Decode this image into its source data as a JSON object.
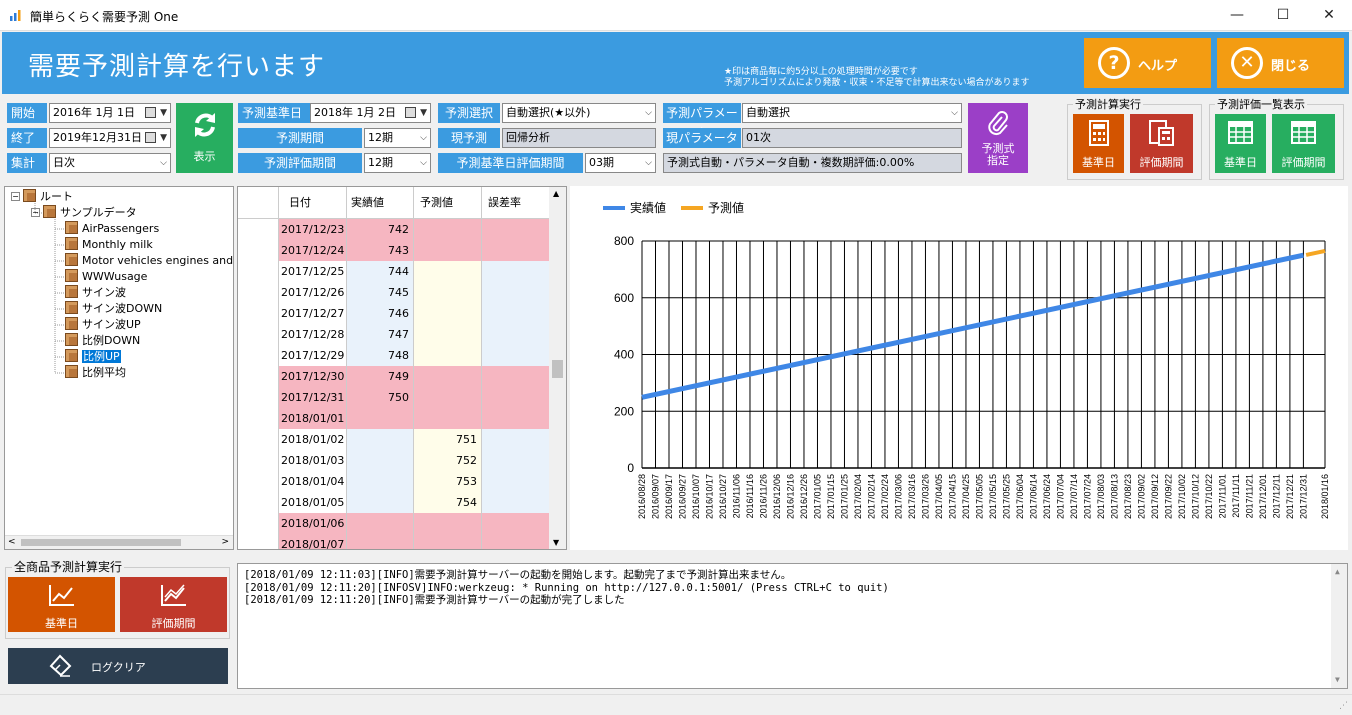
{
  "window": {
    "title": "簡単らくらく需要予測 One",
    "min": "—",
    "max": "☐",
    "close": "✕"
  },
  "header": {
    "title": "需要予測計算を行います",
    "note1": "★印は商品毎に約5分以上の処理時間が必要です",
    "note2": "予測アルゴリズムにより発散・収束・不足等で計算出来ない場合があります",
    "help": "ヘルプ",
    "close": "閉じる"
  },
  "filters": {
    "start_label": "開始",
    "start_value": "2016年 1月 1日",
    "end_label": "終了",
    "end_value": "2019年12月31日",
    "agg_label": "集計",
    "agg_value": "日次",
    "refresh": "表示"
  },
  "settings": {
    "base_date_label": "予測基準日",
    "base_date_value": "2018年 1月 2日",
    "period_label": "予測期間",
    "period_value": "12期",
    "eval_period_label": "予測評価期間",
    "eval_period_value": "12期",
    "select_label": "予測選択",
    "select_value": "自動選択(★以外)",
    "current_label": "現予測",
    "current_value": "回帰分析",
    "base_eval_label": "予測基準日評価期間",
    "base_eval_value": "03期",
    "param_label": "予測パラメータ",
    "param_value": "自動選択",
    "cur_param_label": "現パラメータ",
    "cur_param_value": "01次",
    "summary": "予測式自動・パラメータ自動・複数期評価:0.00%",
    "formula_btn1": "予測式",
    "formula_btn2": "指定"
  },
  "calc": {
    "title": "予測計算実行",
    "base": "基準日",
    "eval": "評価期間"
  },
  "evallist": {
    "title": "予測評価一覧表示",
    "base": "基準日",
    "eval": "評価期間"
  },
  "tree": {
    "root": "ルート",
    "folder": "サンプルデータ",
    "items": [
      "AirPassengers",
      "Monthly milk",
      "Motor vehicles engines and p",
      "WWWusage",
      "サイン波",
      "サイン波DOWN",
      "サイン波UP",
      "比例DOWN",
      "比例UP",
      "比例平均"
    ]
  },
  "grid": {
    "headers": [
      "日付",
      "実績値",
      "予測値",
      "誤差率"
    ],
    "rows": [
      {
        "date": "2017/12/23",
        "actual": "742",
        "pred": "",
        "err": "",
        "pink": true
      },
      {
        "date": "2017/12/24",
        "actual": "743",
        "pred": "",
        "err": "",
        "pink": true
      },
      {
        "date": "2017/12/25",
        "actual": "744",
        "pred": "",
        "err": "",
        "pink": false
      },
      {
        "date": "2017/12/26",
        "actual": "745",
        "pred": "",
        "err": "",
        "pink": false
      },
      {
        "date": "2017/12/27",
        "actual": "746",
        "pred": "",
        "err": "",
        "pink": false
      },
      {
        "date": "2017/12/28",
        "actual": "747",
        "pred": "",
        "err": "",
        "pink": false
      },
      {
        "date": "2017/12/29",
        "actual": "748",
        "pred": "",
        "err": "",
        "pink": false
      },
      {
        "date": "2017/12/30",
        "actual": "749",
        "pred": "",
        "err": "",
        "pink": true
      },
      {
        "date": "2017/12/31",
        "actual": "750",
        "pred": "",
        "err": "",
        "pink": true
      },
      {
        "date": "2018/01/01",
        "actual": "",
        "pred": "",
        "err": "",
        "pink": true
      },
      {
        "date": "2018/01/02",
        "actual": "",
        "pred": "751",
        "err": "",
        "pink": false
      },
      {
        "date": "2018/01/03",
        "actual": "",
        "pred": "752",
        "err": "",
        "pink": false
      },
      {
        "date": "2018/01/04",
        "actual": "",
        "pred": "753",
        "err": "",
        "pink": false
      },
      {
        "date": "2018/01/05",
        "actual": "",
        "pred": "754",
        "err": "",
        "pink": false
      },
      {
        "date": "2018/01/06",
        "actual": "",
        "pred": "",
        "err": "",
        "pink": true
      },
      {
        "date": "2018/01/07",
        "actual": "",
        "pred": "",
        "err": "",
        "pink": true
      }
    ]
  },
  "allcalc": {
    "title": "全商品予測計算実行",
    "base": "基準日",
    "eval": "評価期間",
    "clear": "ログクリア"
  },
  "log": [
    "[2018/01/09 12:11:03][INFO]需要予測計算サーバーの起動を開始します。起動完了まで予測計算出来ません。",
    "[2018/01/09 12:11:20][INFOSV]INFO:werkzeug: * Running on http://127.0.0.1:5001/ (Press CTRL+C to quit)",
    "[2018/01/09 12:11:20][INFO]需要予測計算サーバーの起動が完了しました"
  ],
  "chart_data": {
    "type": "line",
    "series": [
      {
        "name": "実績値",
        "color": "#3f87e6",
        "x": [
          "2016/08/28",
          "2017/12/31"
        ],
        "y": [
          249,
          750
        ]
      },
      {
        "name": "予測値",
        "color": "#f5a623",
        "x": [
          "2018/01/02",
          "2018/01/16"
        ],
        "y": [
          751,
          765
        ]
      }
    ],
    "ylim": [
      0,
      800
    ],
    "yticks": [
      0,
      200,
      400,
      600,
      800
    ],
    "xticks": [
      "2016/08/28",
      "2016/09/07",
      "2016/09/17",
      "2016/09/27",
      "2016/10/07",
      "2016/10/17",
      "2016/10/27",
      "2016/11/06",
      "2016/11/16",
      "2016/11/26",
      "2016/12/06",
      "2016/12/16",
      "2016/12/26",
      "2017/01/05",
      "2017/01/15",
      "2017/01/25",
      "2017/02/04",
      "2017/02/14",
      "2017/02/24",
      "2017/03/06",
      "2017/03/16",
      "2017/03/26",
      "2017/04/05",
      "2017/04/15",
      "2017/04/25",
      "2017/05/05",
      "2017/05/15",
      "2017/05/25",
      "2017/06/04",
      "2017/06/14",
      "2017/06/24",
      "2017/07/04",
      "2017/07/14",
      "2017/07/24",
      "2017/08/03",
      "2017/08/13",
      "2017/08/23",
      "2017/09/02",
      "2017/09/12",
      "2017/09/22",
      "2017/10/02",
      "2017/10/12",
      "2017/10/22",
      "2017/11/01",
      "2017/11/11",
      "2017/11/21",
      "2017/12/01",
      "2017/12/11",
      "2017/12/21",
      "2017/12/31",
      "2018/01/16"
    ],
    "grid": true,
    "legend": "top-left"
  }
}
